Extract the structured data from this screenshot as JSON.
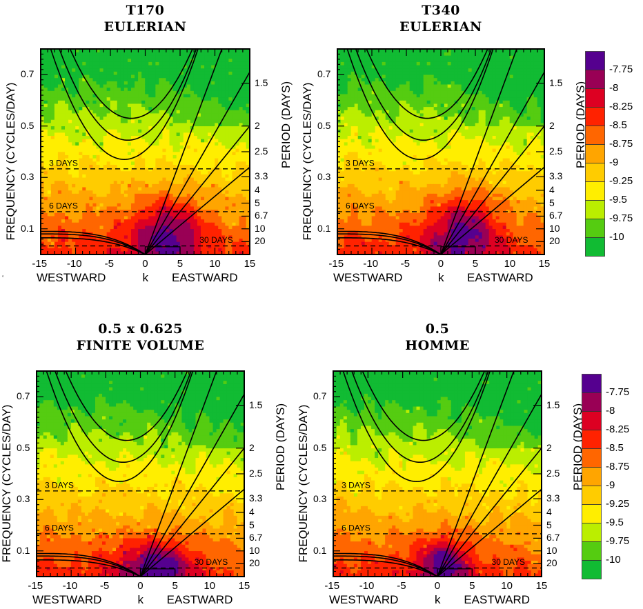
{
  "chart_data": [
    {
      "type": "heatmap",
      "title": [
        "T170",
        "EULERIAN"
      ],
      "xlabel": {
        "left": "WESTWARD",
        "center": "k",
        "right": "EASTWARD"
      },
      "ylabel": "FREQUENCY (CYCLES/DAY)",
      "y2label": "PERIOD (DAYS)",
      "xlim": [
        -15,
        15
      ],
      "ylim": [
        0,
        0.8
      ],
      "xticks": [
        "-15",
        "-10",
        "-5",
        "0",
        "5",
        "10",
        "15"
      ],
      "yticks": [
        "0.1",
        "0.3",
        "0.5",
        "0.7"
      ],
      "period_ticks": [
        "1.5",
        "2",
        "2.5",
        "3.3",
        "4",
        "5",
        "6.7",
        "10",
        "20"
      ],
      "reference_lines": [
        "3 DAYS",
        "6 DAYS",
        "30 DAYS"
      ],
      "peak_region": {
        "k": [
          0,
          7
        ],
        "freq": [
          0,
          0.18
        ],
        "level": -7.75
      }
    },
    {
      "type": "heatmap",
      "title": [
        "T340",
        "EULERIAN"
      ],
      "xlabel": {
        "left": "WESTWARD",
        "center": "k",
        "right": "EASTWARD"
      },
      "ylabel": "FREQUENCY (CYCLES/DAY)",
      "y2label": "PERIOD (DAYS)",
      "xlim": [
        -15,
        15
      ],
      "ylim": [
        0,
        0.8
      ],
      "xticks": [
        "-15",
        "-10",
        "-5",
        "0",
        "5",
        "10",
        "15"
      ],
      "yticks": [
        "0.1",
        "0.3",
        "0.5",
        "0.7"
      ],
      "period_ticks": [
        "1.5",
        "2",
        "2.5",
        "3.3",
        "4",
        "5",
        "6.7",
        "10",
        "20"
      ],
      "reference_lines": [
        "3 DAYS",
        "6 DAYS",
        "30 DAYS"
      ],
      "peak_region": {
        "k": [
          0,
          7
        ],
        "freq": [
          0,
          0.2
        ],
        "level": -8
      }
    },
    {
      "type": "heatmap",
      "title": [
        "0.5 x 0.625",
        "FINITE VOLUME"
      ],
      "xlabel": {
        "left": "WESTWARD",
        "center": "k",
        "right": "EASTWARD"
      },
      "ylabel": "FREQUENCY (CYCLES/DAY)",
      "y2label": "PERIOD (DAYS)",
      "xlim": [
        -15,
        15
      ],
      "ylim": [
        0,
        0.8
      ],
      "xticks": [
        "-15",
        "-10",
        "-5",
        "0",
        "5",
        "10",
        "15"
      ],
      "yticks": [
        "0.1",
        "0.3",
        "0.5",
        "0.7"
      ],
      "period_ticks": [
        "1.5",
        "2",
        "2.5",
        "3.3",
        "4",
        "5",
        "6.7",
        "10",
        "20"
      ],
      "reference_lines": [
        "3 DAYS",
        "6 DAYS",
        "30 DAYS"
      ],
      "peak_region": {
        "k": [
          -1,
          6
        ],
        "freq": [
          0,
          0.08
        ],
        "level": -7.75
      }
    },
    {
      "type": "heatmap",
      "title": [
        "0.5",
        "HOMME"
      ],
      "xlabel": {
        "left": "WESTWARD",
        "center": "k",
        "right": "EASTWARD"
      },
      "ylabel": "FREQUENCY (CYCLES/DAY)",
      "y2label": "PERIOD (DAYS)",
      "xlim": [
        -15,
        15
      ],
      "ylim": [
        0,
        0.8
      ],
      "xticks": [
        "-15",
        "-10",
        "-5",
        "0",
        "5",
        "10",
        "15"
      ],
      "yticks": [
        "0.1",
        "0.3",
        "0.5",
        "0.7"
      ],
      "period_ticks": [
        "1.5",
        "2",
        "2.5",
        "3.3",
        "4",
        "5",
        "6.7",
        "10",
        "20"
      ],
      "reference_lines": [
        "3 DAYS",
        "6 DAYS",
        "30 DAYS"
      ],
      "peak_region": {
        "k": [
          -1,
          3
        ],
        "freq": [
          0.02,
          0.09
        ],
        "level": -7.75
      }
    }
  ],
  "colorbar": {
    "labels": [
      "-7.75",
      "-8",
      "-8.25",
      "-8.5",
      "-8.75",
      "-9",
      "-9.25",
      "-9.5",
      "-9.75",
      "-10"
    ],
    "colors": [
      "#55008f",
      "#990055",
      "#dd0022",
      "#ff2200",
      "#ff6600",
      "#ffa500",
      "#ffcc00",
      "#ffee00",
      "#bbee00",
      "#55cc11",
      "#11bb33"
    ]
  },
  "reference_periods_days": [
    3,
    6,
    30
  ],
  "stray_mark": "‘"
}
